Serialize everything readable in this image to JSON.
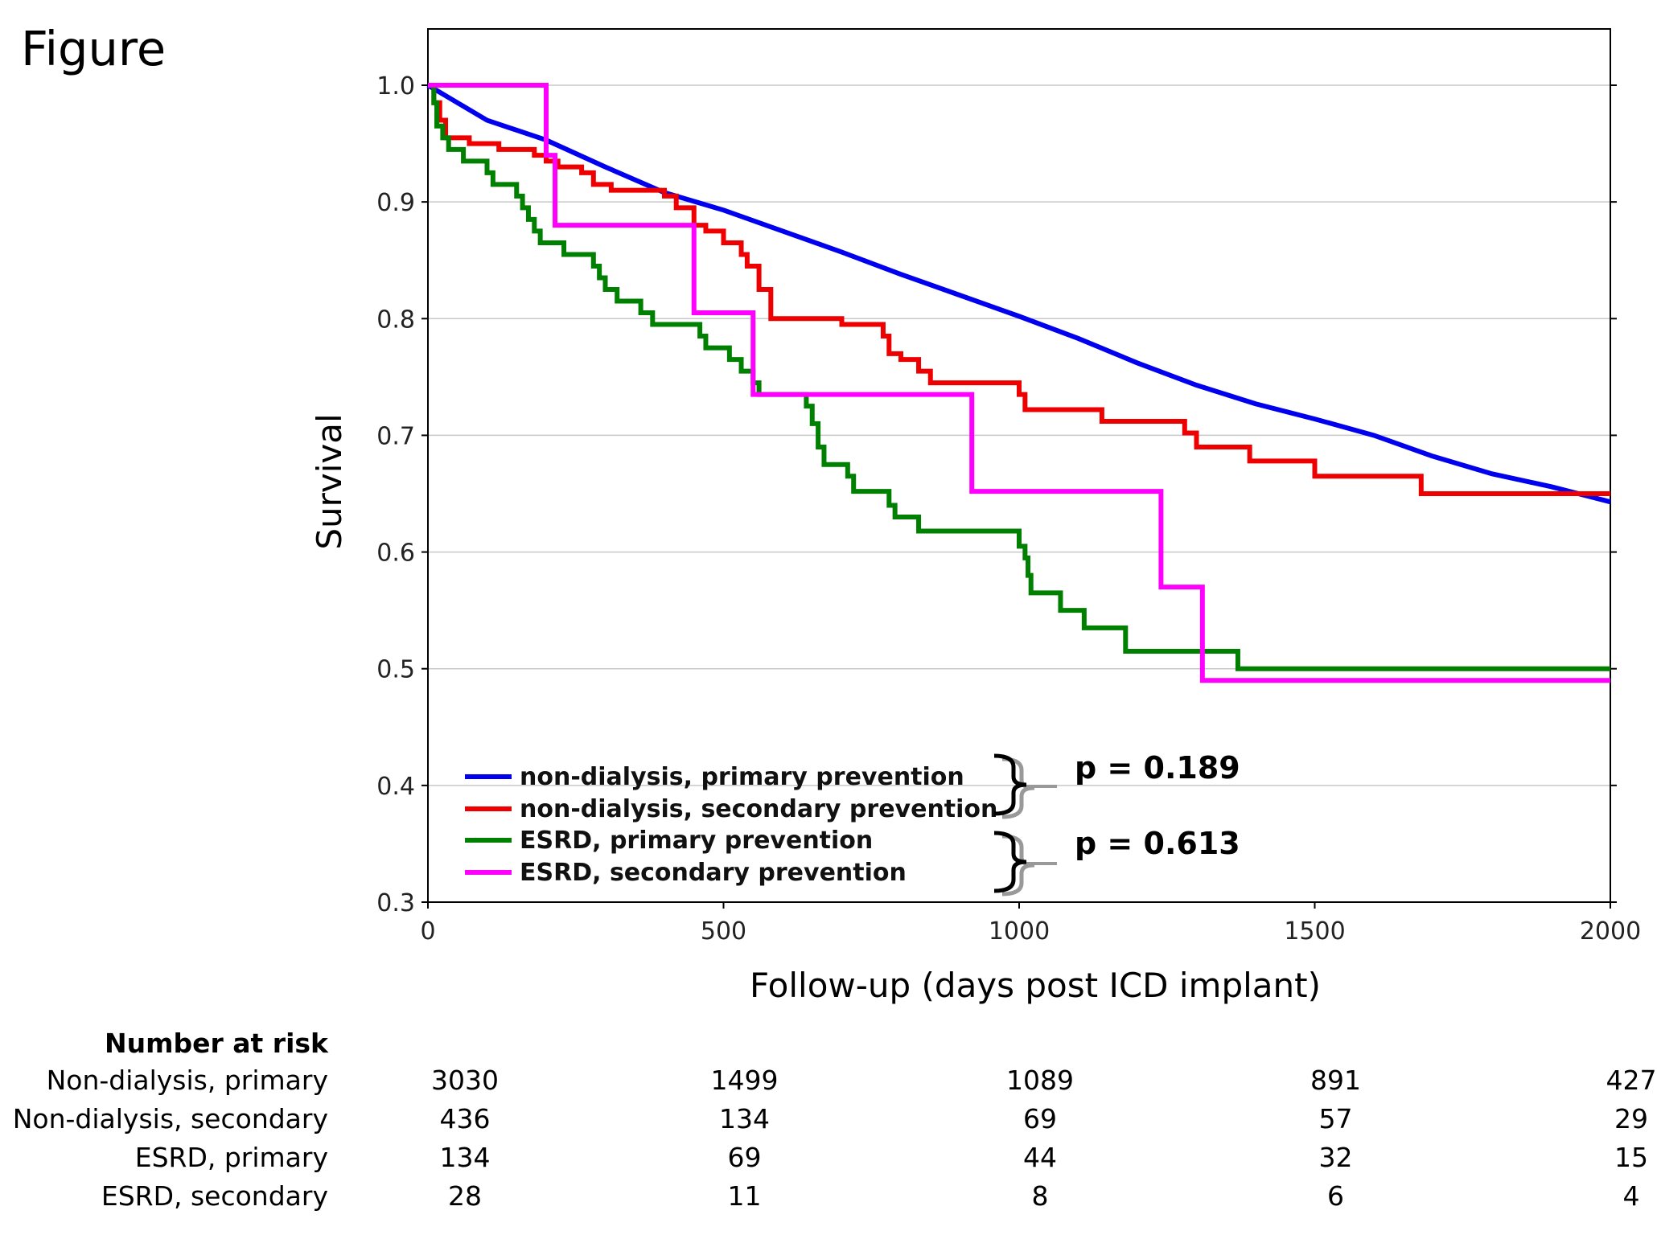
{
  "figure_label": "Figure",
  "chart_data": {
    "type": "line",
    "xlabel": "Follow-up (days post ICD implant)",
    "ylabel": "Survival",
    "xlim": [
      0,
      2000
    ],
    "ylim": [
      0.3,
      1.05
    ],
    "x_ticks": [
      "0",
      "500",
      "1000",
      "1500",
      "2000"
    ],
    "y_ticks": [
      "0.3",
      "0.4",
      "0.5",
      "0.6",
      "0.7",
      "0.8",
      "0.9",
      "1.0"
    ],
    "grid": "horizontal",
    "legend_position": "bottom-left",
    "series": [
      {
        "name": "non-dialysis, primary prevention",
        "color": "#0000ee",
        "step": false,
        "points": [
          [
            0,
            1.0
          ],
          [
            50,
            0.985
          ],
          [
            100,
            0.97
          ],
          [
            200,
            0.953
          ],
          [
            300,
            0.93
          ],
          [
            400,
            0.908
          ],
          [
            500,
            0.893
          ],
          [
            600,
            0.875
          ],
          [
            700,
            0.857
          ],
          [
            800,
            0.838
          ],
          [
            900,
            0.82
          ],
          [
            1000,
            0.802
          ],
          [
            1100,
            0.783
          ],
          [
            1200,
            0.762
          ],
          [
            1300,
            0.743
          ],
          [
            1400,
            0.727
          ],
          [
            1500,
            0.714
          ],
          [
            1600,
            0.7
          ],
          [
            1700,
            0.682
          ],
          [
            1800,
            0.667
          ],
          [
            1900,
            0.656
          ],
          [
            2000,
            0.643
          ]
        ]
      },
      {
        "name": "non-dialysis, secondary prevention",
        "color": "#ee0000",
        "step": true,
        "points": [
          [
            0,
            1.0
          ],
          [
            10,
            0.985
          ],
          [
            20,
            0.97
          ],
          [
            30,
            0.955
          ],
          [
            70,
            0.95
          ],
          [
            120,
            0.945
          ],
          [
            180,
            0.94
          ],
          [
            200,
            0.935
          ],
          [
            220,
            0.93
          ],
          [
            260,
            0.925
          ],
          [
            280,
            0.915
          ],
          [
            310,
            0.91
          ],
          [
            400,
            0.905
          ],
          [
            420,
            0.895
          ],
          [
            450,
            0.88
          ],
          [
            470,
            0.875
          ],
          [
            500,
            0.865
          ],
          [
            530,
            0.855
          ],
          [
            540,
            0.845
          ],
          [
            560,
            0.825
          ],
          [
            580,
            0.8
          ],
          [
            700,
            0.795
          ],
          [
            770,
            0.785
          ],
          [
            780,
            0.77
          ],
          [
            800,
            0.765
          ],
          [
            830,
            0.755
          ],
          [
            850,
            0.745
          ],
          [
            1000,
            0.735
          ],
          [
            1010,
            0.722
          ],
          [
            1100,
            0.722
          ],
          [
            1140,
            0.712
          ],
          [
            1280,
            0.702
          ],
          [
            1300,
            0.69
          ],
          [
            1390,
            0.678
          ],
          [
            1500,
            0.665
          ],
          [
            1680,
            0.65
          ],
          [
            2000,
            0.65
          ]
        ]
      },
      {
        "name": "ESRD, primary prevention",
        "color": "#008000",
        "step": true,
        "points": [
          [
            0,
            1.0
          ],
          [
            10,
            0.985
          ],
          [
            15,
            0.965
          ],
          [
            25,
            0.955
          ],
          [
            35,
            0.945
          ],
          [
            60,
            0.935
          ],
          [
            100,
            0.925
          ],
          [
            110,
            0.915
          ],
          [
            150,
            0.905
          ],
          [
            160,
            0.895
          ],
          [
            170,
            0.885
          ],
          [
            180,
            0.875
          ],
          [
            190,
            0.865
          ],
          [
            230,
            0.855
          ],
          [
            280,
            0.845
          ],
          [
            290,
            0.835
          ],
          [
            300,
            0.825
          ],
          [
            320,
            0.815
          ],
          [
            360,
            0.805
          ],
          [
            380,
            0.795
          ],
          [
            460,
            0.785
          ],
          [
            470,
            0.775
          ],
          [
            510,
            0.765
          ],
          [
            530,
            0.755
          ],
          [
            550,
            0.745
          ],
          [
            560,
            0.735
          ],
          [
            600,
            0.735
          ],
          [
            640,
            0.725
          ],
          [
            650,
            0.71
          ],
          [
            660,
            0.69
          ],
          [
            670,
            0.675
          ],
          [
            710,
            0.665
          ],
          [
            720,
            0.652
          ],
          [
            780,
            0.64
          ],
          [
            790,
            0.63
          ],
          [
            830,
            0.618
          ],
          [
            1000,
            0.605
          ],
          [
            1010,
            0.595
          ],
          [
            1015,
            0.58
          ],
          [
            1020,
            0.565
          ],
          [
            1070,
            0.55
          ],
          [
            1110,
            0.535
          ],
          [
            1180,
            0.515
          ],
          [
            1370,
            0.5
          ],
          [
            2000,
            0.5
          ]
        ]
      },
      {
        "name": "ESRD, secondary prevention",
        "color": "#ff00ff",
        "step": true,
        "points": [
          [
            0,
            1.0
          ],
          [
            200,
            0.94
          ],
          [
            215,
            0.88
          ],
          [
            450,
            0.805
          ],
          [
            550,
            0.735
          ],
          [
            920,
            0.652
          ],
          [
            1240,
            0.57
          ],
          [
            1310,
            0.49
          ],
          [
            2000,
            0.49
          ]
        ]
      }
    ]
  },
  "annotations": [
    {
      "text": "p = 0.189",
      "x": 1380,
      "y": 0.41
    },
    {
      "text": "p = 0.613",
      "x": 1380,
      "y": 0.345
    }
  ],
  "risk_table": {
    "title": "Number at risk",
    "columns_x": [
      0,
      500,
      1000,
      1500,
      2000
    ],
    "rows": [
      {
        "label": "Non-dialysis, primary",
        "values": [
          "3030",
          "1499",
          "1089",
          "891",
          "427"
        ]
      },
      {
        "label": "Non-dialysis, secondary",
        "values": [
          "436",
          "134",
          "69",
          "57",
          "29"
        ]
      },
      {
        "label": "ESRD, primary",
        "values": [
          "134",
          "69",
          "44",
          "32",
          "15"
        ]
      },
      {
        "label": "ESRD, secondary",
        "values": [
          "28",
          "11",
          "8",
          "6",
          "4"
        ]
      }
    ]
  }
}
